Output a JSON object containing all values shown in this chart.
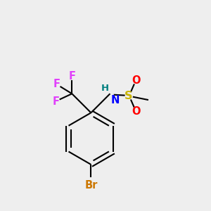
{
  "background_color": "#eeeeee",
  "bond_color": "#000000",
  "F_color": "#e040fb",
  "N_color": "#0000ff",
  "H_color": "#008080",
  "S_color": "#c8b400",
  "O_color": "#ff0000",
  "Br_color": "#cc7700",
  "figsize": [
    3.0,
    3.0
  ],
  "dpi": 100,
  "xlim": [
    0,
    10
  ],
  "ylim": [
    0,
    10
  ]
}
